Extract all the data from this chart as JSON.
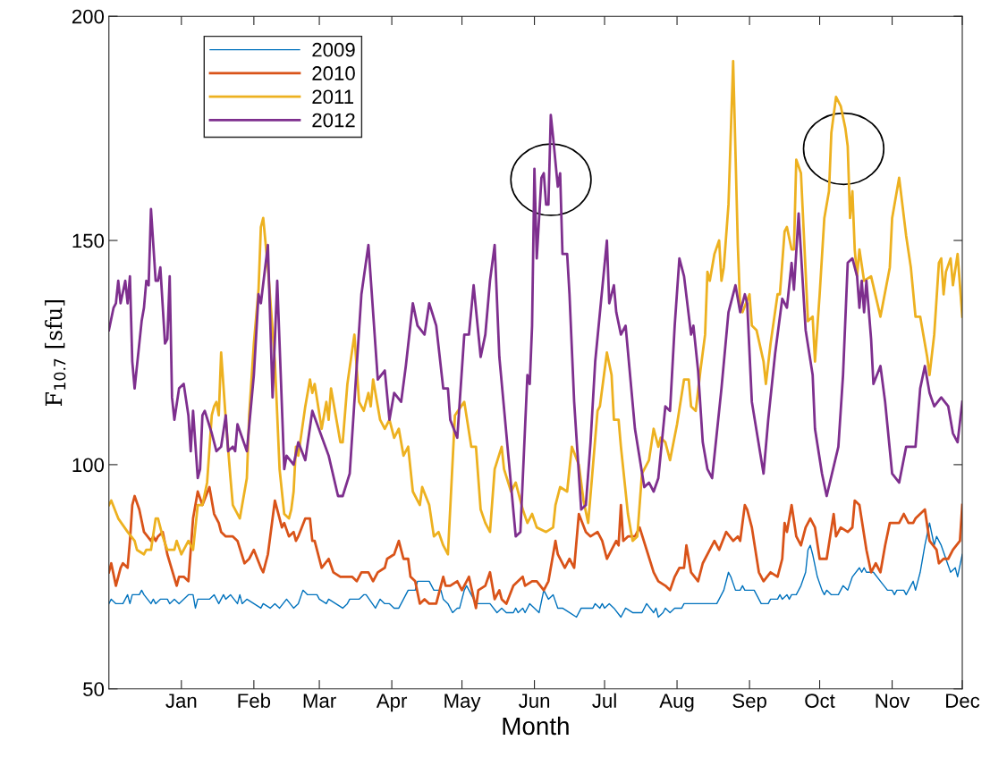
{
  "chart_data": {
    "type": "line",
    "xlabel": "Month",
    "ylabel": "F$_{10.7}$ [sfu]",
    "xlim": [
      "2010-12-01",
      "2011-12-01"
    ],
    "xticks": [
      {
        "value": "2011-01-01",
        "label": "Jan"
      },
      {
        "value": "2011-02-01",
        "label": "Feb"
      },
      {
        "value": "2011-03-01",
        "label": "Mar"
      },
      {
        "value": "2011-04-01",
        "label": "Apr"
      },
      {
        "value": "2011-05-01",
        "label": "May"
      },
      {
        "value": "2011-06-01",
        "label": "Jun"
      },
      {
        "value": "2011-07-01",
        "label": "Jul"
      },
      {
        "value": "2011-08-01",
        "label": "Aug"
      },
      {
        "value": "2011-09-01",
        "label": "Sep"
      },
      {
        "value": "2011-10-01",
        "label": "Oct"
      },
      {
        "value": "2011-11-01",
        "label": "Nov"
      },
      {
        "value": "2011-12-01",
        "label": "Dec"
      }
    ],
    "ylim": [
      50,
      200
    ],
    "yticks": [
      50,
      100,
      150,
      200
    ],
    "grid": false,
    "legend": "top left",
    "marker": "none",
    "line_style": "solid",
    "series": [
      {
        "name": "2009",
        "color": "#0072bd",
        "x": [
          "2010-12-01",
          "2010-12-02",
          "2010-12-04",
          "2010-12-07",
          "2010-12-09",
          "2010-12-10",
          "2010-12-11",
          "2010-12-14",
          "2010-12-15",
          "2010-12-16",
          "2010-12-19",
          "2010-12-20",
          "2010-12-21",
          "2010-12-23",
          "2010-12-26",
          "2010-12-27",
          "2010-12-29",
          "2010-12-31",
          "2011-01-02",
          "2011-01-04",
          "2011-01-06",
          "2011-01-07",
          "2011-01-08",
          "2011-01-13",
          "2011-01-15",
          "2011-01-17",
          "2011-01-19",
          "2011-01-20",
          "2011-01-22",
          "2011-01-25",
          "2011-01-26",
          "2011-01-27",
          "2011-01-29",
          "2011-02-01",
          "2011-02-04",
          "2011-02-05",
          "2011-02-08",
          "2011-02-10",
          "2011-02-12",
          "2011-02-15",
          "2011-02-18",
          "2011-02-20",
          "2011-02-22",
          "2011-02-24",
          "2011-02-28",
          "2011-03-01",
          "2011-03-04",
          "2011-03-05",
          "2011-03-08",
          "2011-03-11",
          "2011-03-13",
          "2011-03-14",
          "2011-03-18",
          "2011-03-20",
          "2011-03-21",
          "2011-03-25",
          "2011-03-27",
          "2011-03-29",
          "2011-03-31",
          "2011-04-02",
          "2011-04-04",
          "2011-04-08",
          "2011-04-11",
          "2011-04-12",
          "2011-04-17",
          "2011-04-19",
          "2011-04-22",
          "2011-04-23",
          "2011-04-25",
          "2011-04-27",
          "2011-04-29",
          "2011-04-30",
          "2011-05-02",
          "2011-05-03",
          "2011-05-04",
          "2011-05-07",
          "2011-05-13",
          "2011-05-16",
          "2011-05-18",
          "2011-05-20",
          "2011-05-23",
          "2011-05-24",
          "2011-05-25",
          "2011-05-27",
          "2011-05-28",
          "2011-05-30",
          "2011-06-01",
          "2011-06-03",
          "2011-06-05",
          "2011-06-07",
          "2011-06-09",
          "2011-06-11",
          "2011-06-13",
          "2011-06-16",
          "2011-06-19",
          "2011-06-21",
          "2011-06-26",
          "2011-06-27",
          "2011-06-29",
          "2011-06-30",
          "2011-07-01",
          "2011-07-03",
          "2011-07-05",
          "2011-07-08",
          "2011-07-10",
          "2011-07-13",
          "2011-07-17",
          "2011-07-19",
          "2011-07-22",
          "2011-07-23",
          "2011-07-24",
          "2011-07-26",
          "2011-07-27",
          "2011-07-29",
          "2011-07-31",
          "2011-08-03",
          "2011-08-04",
          "2011-08-18",
          "2011-08-20",
          "2011-08-21",
          "2011-08-23",
          "2011-08-24",
          "2011-08-26",
          "2011-08-28",
          "2011-08-29",
          "2011-08-30",
          "2011-09-03",
          "2011-09-06",
          "2011-09-09",
          "2011-09-10",
          "2011-09-13",
          "2011-09-14",
          "2011-09-15",
          "2011-09-17",
          "2011-09-18",
          "2011-09-19",
          "2011-09-21",
          "2011-09-23",
          "2011-09-25",
          "2011-09-26",
          "2011-09-27",
          "2011-09-28",
          "2011-09-30",
          "2011-10-02",
          "2011-10-03",
          "2011-10-04",
          "2011-10-06",
          "2011-10-09",
          "2011-10-11",
          "2011-10-13",
          "2011-10-15",
          "2011-10-18",
          "2011-10-19",
          "2011-10-20",
          "2011-10-21",
          "2011-10-24",
          "2011-10-27",
          "2011-10-30",
          "2011-11-01",
          "2011-11-02",
          "2011-11-03",
          "2011-11-06",
          "2011-11-07",
          "2011-11-10",
          "2011-11-11",
          "2011-11-13",
          "2011-11-15",
          "2011-11-17",
          "2011-11-19",
          "2011-11-20",
          "2011-11-22",
          "2011-11-24",
          "2011-11-26",
          "2011-11-28",
          "2011-11-29",
          "2011-12-01"
        ],
        "values": [
          69,
          70,
          69,
          69,
          71,
          69,
          71,
          71,
          72,
          71,
          69,
          70,
          69,
          70,
          70,
          69,
          70,
          69,
          70,
          71,
          71,
          68,
          70,
          70,
          71,
          69,
          71,
          70,
          71,
          69,
          71,
          69,
          70,
          69,
          68,
          69,
          68,
          69,
          68,
          70,
          68,
          69,
          72,
          71,
          71,
          70,
          69,
          70,
          69,
          68,
          69,
          70,
          70,
          71,
          71,
          68,
          70,
          69,
          69,
          68,
          68,
          72,
          72,
          74,
          74,
          72,
          72,
          70,
          69,
          67,
          68,
          68,
          72,
          73,
          72,
          69,
          69,
          67,
          68,
          67,
          67,
          68,
          67,
          68,
          67,
          69,
          68,
          67,
          72,
          70,
          71,
          68,
          68,
          67,
          66,
          68,
          68,
          69,
          68,
          69,
          68,
          69,
          68,
          66,
          68,
          67,
          67,
          69,
          67,
          68,
          66,
          67,
          68,
          67,
          68,
          68,
          69,
          69,
          71,
          72,
          76,
          75,
          72,
          72,
          73,
          72,
          72,
          69,
          69,
          70,
          70,
          71,
          70,
          71,
          70,
          71,
          71,
          73,
          76,
          81,
          82,
          80,
          75,
          72,
          71,
          72,
          71,
          71,
          73,
          72,
          75,
          77,
          76,
          77,
          76,
          76,
          74,
          72,
          72,
          71,
          72,
          72,
          71,
          74,
          72,
          76,
          82,
          87,
          82,
          84,
          82,
          79,
          76,
          77,
          75,
          80
        ]
      },
      {
        "name": "2010",
        "color": "#d95319",
        "x": [
          "2010-12-01",
          "2010-12-02",
          "2010-12-04",
          "2010-12-06",
          "2010-12-07",
          "2010-12-09",
          "2010-12-10",
          "2010-12-11",
          "2010-12-12",
          "2010-12-14",
          "2010-12-16",
          "2010-12-19",
          "2010-12-20",
          "2010-12-21",
          "2010-12-22",
          "2010-12-24",
          "2010-12-26",
          "2010-12-30",
          "2010-12-31",
          "2011-01-02",
          "2011-01-04",
          "2011-01-06",
          "2011-01-08",
          "2011-01-10",
          "2011-01-13",
          "2011-01-15",
          "2011-01-17",
          "2011-01-18",
          "2011-01-20",
          "2011-01-23",
          "2011-01-25",
          "2011-01-28",
          "2011-01-30",
          "2011-02-01",
          "2011-02-04",
          "2011-02-05",
          "2011-02-07",
          "2011-02-10",
          "2011-02-13",
          "2011-02-14",
          "2011-02-16",
          "2011-02-18",
          "2011-02-19",
          "2011-02-20",
          "2011-02-23",
          "2011-02-25",
          "2011-02-26",
          "2011-02-27",
          "2011-03-02",
          "2011-03-05",
          "2011-03-07",
          "2011-03-10",
          "2011-03-15",
          "2011-03-17",
          "2011-03-19",
          "2011-03-22",
          "2011-03-24",
          "2011-03-26",
          "2011-03-29",
          "2011-03-30",
          "2011-04-02",
          "2011-04-04",
          "2011-04-06",
          "2011-04-08",
          "2011-04-09",
          "2011-04-11",
          "2011-04-13",
          "2011-04-15",
          "2011-04-17",
          "2011-04-20",
          "2011-04-23",
          "2011-04-24",
          "2011-04-26",
          "2011-04-29",
          "2011-05-01",
          "2011-05-04",
          "2011-05-07",
          "2011-05-08",
          "2011-05-11",
          "2011-05-13",
          "2011-05-15",
          "2011-05-17",
          "2011-05-18",
          "2011-05-20",
          "2011-05-23",
          "2011-05-27",
          "2011-05-28",
          "2011-05-31",
          "2011-06-02",
          "2011-06-05",
          "2011-06-07",
          "2011-06-09",
          "2011-06-10",
          "2011-06-11",
          "2011-06-14",
          "2011-06-16",
          "2011-06-18",
          "2011-06-20",
          "2011-06-23",
          "2011-06-25",
          "2011-06-28",
          "2011-06-30",
          "2011-07-02",
          "2011-07-04",
          "2011-07-06",
          "2011-07-07",
          "2011-07-08",
          "2011-07-09",
          "2011-07-11",
          "2011-07-14",
          "2011-07-16",
          "2011-07-19",
          "2011-07-22",
          "2011-07-24",
          "2011-07-27",
          "2011-07-29",
          "2011-07-31",
          "2011-08-02",
          "2011-08-04",
          "2011-08-05",
          "2011-08-07",
          "2011-08-10",
          "2011-08-12",
          "2011-08-15",
          "2011-08-17",
          "2011-08-18",
          "2011-08-19",
          "2011-08-22",
          "2011-08-25",
          "2011-08-27",
          "2011-08-28",
          "2011-08-30",
          "2011-08-31",
          "2011-09-02",
          "2011-09-05",
          "2011-09-07",
          "2011-09-10",
          "2011-09-13",
          "2011-09-15",
          "2011-09-16",
          "2011-09-17",
          "2011-09-19",
          "2011-09-21",
          "2011-09-23",
          "2011-09-24",
          "2011-09-25",
          "2011-09-27",
          "2011-09-29",
          "2011-10-01",
          "2011-10-04",
          "2011-10-07",
          "2011-10-08",
          "2011-10-10",
          "2011-10-13",
          "2011-10-15",
          "2011-10-16",
          "2011-10-18",
          "2011-10-21",
          "2011-10-23",
          "2011-10-25",
          "2011-10-27",
          "2011-10-29",
          "2011-10-31",
          "2011-11-04",
          "2011-11-06",
          "2011-11-08",
          "2011-11-10",
          "2011-11-11",
          "2011-11-13",
          "2011-11-15",
          "2011-11-17",
          "2011-11-20",
          "2011-11-21",
          "2011-11-23",
          "2011-11-25",
          "2011-11-27",
          "2011-11-30",
          "2011-12-01"
        ],
        "values": [
          76,
          78,
          73,
          77,
          78,
          77,
          83,
          91,
          93,
          90,
          85,
          83,
          84,
          83,
          84,
          85,
          80,
          73,
          75,
          75,
          74,
          88,
          94,
          91,
          95,
          89,
          87,
          85,
          84,
          84,
          83,
          78,
          79,
          81,
          77,
          76,
          80,
          92,
          86,
          87,
          84,
          85,
          83,
          84,
          88,
          88,
          83,
          83,
          77,
          79,
          76,
          75,
          75,
          74,
          76,
          76,
          74,
          76,
          77,
          79,
          80,
          83,
          79,
          79,
          75,
          74,
          69,
          70,
          69,
          69,
          75,
          73,
          73,
          74,
          72,
          75,
          68,
          72,
          73,
          76,
          70,
          72,
          70,
          69,
          73,
          75,
          73,
          74,
          74,
          72,
          74,
          80,
          83,
          80,
          77,
          79,
          77,
          89,
          85,
          84,
          85,
          83,
          79,
          81,
          83,
          82,
          91,
          83,
          84,
          84,
          86,
          81,
          76,
          74,
          73,
          72,
          75,
          77,
          77,
          82,
          76,
          74,
          78,
          81,
          83,
          82,
          81,
          85,
          83,
          84,
          83,
          91,
          90,
          86,
          76,
          74,
          76,
          75,
          79,
          87,
          85,
          91,
          84,
          82,
          84,
          86,
          88,
          86,
          79,
          79,
          89,
          84,
          86,
          85,
          86,
          92,
          91,
          81,
          76,
          78,
          76,
          82,
          87,
          87,
          89,
          87,
          87,
          88,
          89,
          90,
          83,
          81,
          78,
          79,
          79,
          81,
          83,
          91
        ]
      },
      {
        "name": "2011",
        "color": "#edb120",
        "x": [
          "2010-12-01",
          "2010-12-02",
          "2010-12-05",
          "2010-12-09",
          "2010-12-12",
          "2010-12-13",
          "2010-12-16",
          "2010-12-17",
          "2010-12-19",
          "2010-12-21",
          "2010-12-22",
          "2010-12-24",
          "2010-12-26",
          "2010-12-29",
          "2010-12-30",
          "2011-01-01",
          "2011-01-04",
          "2011-01-06",
          "2011-01-08",
          "2011-01-10",
          "2011-01-12",
          "2011-01-14",
          "2011-01-15",
          "2011-01-16",
          "2011-01-17",
          "2011-01-18",
          "2011-01-20",
          "2011-01-22",
          "2011-01-23",
          "2011-01-24",
          "2011-01-26",
          "2011-01-27",
          "2011-01-29",
          "2011-01-30",
          "2011-02-01",
          "2011-02-03",
          "2011-02-04",
          "2011-02-05",
          "2011-02-07",
          "2011-02-10",
          "2011-02-12",
          "2011-02-14",
          "2011-02-16",
          "2011-02-17",
          "2011-02-18",
          "2011-02-19",
          "2011-02-20",
          "2011-02-23",
          "2011-02-25",
          "2011-02-26",
          "2011-02-27",
          "2011-03-02",
          "2011-03-04",
          "2011-03-05",
          "2011-03-06",
          "2011-03-10",
          "2011-03-11",
          "2011-03-13",
          "2011-03-16",
          "2011-03-18",
          "2011-03-20",
          "2011-03-22",
          "2011-03-23",
          "2011-03-24",
          "2011-03-27",
          "2011-03-29",
          "2011-03-31",
          "2011-04-02",
          "2011-04-04",
          "2011-04-06",
          "2011-04-08",
          "2011-04-10",
          "2011-04-13",
          "2011-04-14",
          "2011-04-17",
          "2011-04-19",
          "2011-04-21",
          "2011-04-23",
          "2011-04-25",
          "2011-04-28",
          "2011-05-02",
          "2011-05-05",
          "2011-05-07",
          "2011-05-09",
          "2011-05-11",
          "2011-05-13",
          "2011-05-15",
          "2011-05-18",
          "2011-05-19",
          "2011-05-22",
          "2011-05-24",
          "2011-05-27",
          "2011-05-29",
          "2011-05-31",
          "2011-06-02",
          "2011-06-06",
          "2011-06-09",
          "2011-06-10",
          "2011-06-12",
          "2011-06-15",
          "2011-06-17",
          "2011-06-20",
          "2011-06-22",
          "2011-06-24",
          "2011-06-28",
          "2011-06-29",
          "2011-07-02",
          "2011-07-04",
          "2011-07-05",
          "2011-07-07",
          "2011-07-08",
          "2011-07-11",
          "2011-07-13",
          "2011-07-15",
          "2011-07-17",
          "2011-07-20",
          "2011-07-22",
          "2011-07-24",
          "2011-07-25",
          "2011-07-27",
          "2011-07-29",
          "2011-08-01",
          "2011-08-04",
          "2011-08-06",
          "2011-08-07",
          "2011-08-09",
          "2011-08-11",
          "2011-08-13",
          "2011-08-14",
          "2011-08-15",
          "2011-08-17",
          "2011-08-19",
          "2011-08-20",
          "2011-08-21",
          "2011-08-23",
          "2011-08-25",
          "2011-08-27",
          "2011-08-28",
          "2011-08-29",
          "2011-09-01",
          "2011-09-02",
          "2011-09-04",
          "2011-09-07",
          "2011-09-08",
          "2011-09-10",
          "2011-09-13",
          "2011-09-14",
          "2011-09-16",
          "2011-09-17",
          "2011-09-19",
          "2011-09-20",
          "2011-09-21",
          "2011-09-23",
          "2011-09-26",
          "2011-09-28",
          "2011-09-29",
          "2011-10-01",
          "2011-10-03",
          "2011-10-05",
          "2011-10-06",
          "2011-10-08",
          "2011-10-10",
          "2011-10-12",
          "2011-10-13",
          "2011-10-14",
          "2011-10-15",
          "2011-10-16",
          "2011-10-17",
          "2011-10-18",
          "2011-10-20",
          "2011-10-23",
          "2011-10-27",
          "2011-10-31",
          "2011-11-01",
          "2011-11-04",
          "2011-11-07",
          "2011-11-09",
          "2011-11-11",
          "2011-11-13",
          "2011-11-16",
          "2011-11-17",
          "2011-11-19",
          "2011-11-21",
          "2011-11-22",
          "2011-11-23",
          "2011-11-24",
          "2011-11-26",
          "2011-11-27",
          "2011-11-29",
          "2011-12-01"
        ],
        "values": [
          91,
          92,
          88,
          85,
          83,
          81,
          80,
          81,
          81,
          88,
          88,
          84,
          81,
          81,
          83,
          80,
          83,
          81,
          91,
          91,
          96,
          111,
          113,
          114,
          111,
          125,
          110,
          97,
          91,
          90,
          88,
          91,
          97,
          111,
          127,
          139,
          153,
          155,
          144,
          123,
          99,
          89,
          88,
          90,
          94,
          104,
          102,
          113,
          119,
          116,
          118,
          108,
          114,
          110,
          117,
          105,
          105,
          118,
          129,
          114,
          112,
          116,
          113,
          119,
          110,
          108,
          110,
          106,
          108,
          102,
          104,
          94,
          91,
          95,
          91,
          84,
          85,
          82,
          80,
          111,
          114,
          104,
          104,
          90,
          87,
          85,
          99,
          104,
          99,
          94,
          96,
          90,
          87,
          89,
          86,
          85,
          86,
          91,
          95,
          94,
          104,
          100,
          92,
          87,
          112,
          113,
          125,
          120,
          110,
          110,
          104,
          89,
          83,
          84,
          98,
          101,
          108,
          104,
          106,
          105,
          101,
          109,
          119,
          119,
          113,
          112,
          121,
          129,
          143,
          141,
          147,
          150,
          141,
          144,
          158,
          190,
          149,
          135,
          134,
          138,
          131,
          130,
          123,
          118,
          127,
          138,
          138,
          152,
          153,
          148,
          148,
          168,
          165,
          132,
          133,
          123,
          138,
          155,
          161,
          174,
          182,
          180,
          175,
          171,
          155,
          161,
          148,
          142,
          148,
          141,
          142,
          133,
          144,
          155,
          164,
          151,
          144,
          133,
          133,
          124,
          120,
          129,
          145,
          146,
          138,
          143,
          146,
          140,
          147,
          133
        ]
      },
      {
        "name": "2012",
        "color": "#7e2f8e",
        "x": [
          "2010-12-01",
          "2010-12-03",
          "2010-12-04",
          "2010-12-05",
          "2010-12-06",
          "2010-12-08",
          "2010-12-09",
          "2010-12-10",
          "2010-12-11",
          "2010-12-12",
          "2010-12-15",
          "2010-12-16",
          "2010-12-17",
          "2010-12-18",
          "2010-12-19",
          "2010-12-21",
          "2010-12-22",
          "2010-12-23",
          "2010-12-25",
          "2010-12-26",
          "2010-12-27",
          "2010-12-28",
          "2010-12-29",
          "2010-12-31",
          "2011-01-02",
          "2011-01-04",
          "2011-01-05",
          "2011-01-06",
          "2011-01-08",
          "2011-01-09",
          "2011-01-10",
          "2011-01-11",
          "2011-01-14",
          "2011-01-16",
          "2011-01-18",
          "2011-01-20",
          "2011-01-21",
          "2011-01-23",
          "2011-01-24",
          "2011-01-25",
          "2011-01-27",
          "2011-01-29",
          "2011-02-01",
          "2011-02-03",
          "2011-02-04",
          "2011-02-07",
          "2011-02-09",
          "2011-02-11",
          "2011-02-14",
          "2011-02-15",
          "2011-02-18",
          "2011-02-20",
          "2011-02-23",
          "2011-02-26",
          "2011-03-05",
          "2011-03-09",
          "2011-03-11",
          "2011-03-14",
          "2011-03-19",
          "2011-03-22",
          "2011-03-26",
          "2011-03-29",
          "2011-03-31",
          "2011-04-02",
          "2011-04-05",
          "2011-04-07",
          "2011-04-10",
          "2011-04-12",
          "2011-04-15",
          "2011-04-17",
          "2011-04-20",
          "2011-04-23",
          "2011-04-25",
          "2011-04-26",
          "2011-04-29",
          "2011-05-02",
          "2011-05-04",
          "2011-05-06",
          "2011-05-09",
          "2011-05-11",
          "2011-05-13",
          "2011-05-15",
          "2011-05-17",
          "2011-05-24",
          "2011-05-26",
          "2011-05-29",
          "2011-05-30",
          "2011-05-31",
          "2011-06-01",
          "2011-06-02",
          "2011-06-04",
          "2011-06-05",
          "2011-06-06",
          "2011-06-07",
          "2011-06-08",
          "2011-06-09",
          "2011-06-11",
          "2011-06-12",
          "2011-06-13",
          "2011-06-15",
          "2011-06-16",
          "2011-06-18",
          "2011-06-21",
          "2011-06-23",
          "2011-06-25",
          "2011-06-27",
          "2011-07-02",
          "2011-07-03",
          "2011-07-05",
          "2011-07-06",
          "2011-07-08",
          "2011-07-10",
          "2011-07-14",
          "2011-07-18",
          "2011-07-20",
          "2011-07-22",
          "2011-07-24",
          "2011-07-27",
          "2011-07-29",
          "2011-07-31",
          "2011-08-02",
          "2011-08-04",
          "2011-08-07",
          "2011-08-08",
          "2011-08-10",
          "2011-08-12",
          "2011-08-14",
          "2011-08-16",
          "2011-08-20",
          "2011-08-23",
          "2011-08-26",
          "2011-08-28",
          "2011-08-30",
          "2011-08-31",
          "2011-09-02",
          "2011-09-07",
          "2011-09-09",
          "2011-09-12",
          "2011-09-15",
          "2011-09-17",
          "2011-09-19",
          "2011-09-20",
          "2011-09-22",
          "2011-09-25",
          "2011-09-28",
          "2011-09-29",
          "2011-10-02",
          "2011-10-04",
          "2011-10-09",
          "2011-10-11",
          "2011-10-13",
          "2011-10-15",
          "2011-10-17",
          "2011-10-18",
          "2011-10-19",
          "2011-10-20",
          "2011-10-21",
          "2011-10-23",
          "2011-10-24",
          "2011-10-27",
          "2011-10-29",
          "2011-11-01",
          "2011-11-04",
          "2011-11-07",
          "2011-11-11",
          "2011-11-13",
          "2011-11-15",
          "2011-11-17",
          "2011-11-19",
          "2011-11-22",
          "2011-11-25",
          "2011-11-27",
          "2011-11-29",
          "2011-12-01"
        ],
        "values": [
          130,
          135,
          136,
          141,
          136,
          141,
          136,
          142,
          123,
          117,
          132,
          135,
          141,
          140,
          157,
          141,
          141,
          144,
          127,
          128,
          142,
          115,
          110,
          117,
          118,
          111,
          103,
          112,
          97,
          99,
          111,
          112,
          107,
          103,
          104,
          111,
          103,
          104,
          103,
          109,
          106,
          103,
          120,
          138,
          136,
          149,
          115,
          141,
          99,
          102,
          100,
          105,
          101,
          112,
          102,
          93,
          93,
          98,
          138,
          149,
          119,
          121,
          110,
          116,
          114,
          122,
          136,
          131,
          129,
          136,
          131,
          117,
          117,
          110,
          106,
          129,
          129,
          140,
          124,
          129,
          141,
          149,
          124,
          84,
          85,
          120,
          118,
          131,
          166,
          146,
          164,
          165,
          158,
          158,
          178,
          173,
          162,
          165,
          147,
          147,
          138,
          114,
          90,
          91,
          105,
          123,
          150,
          136,
          140,
          134,
          129,
          131,
          108,
          95,
          96,
          94,
          97,
          113,
          112,
          131,
          146,
          142,
          129,
          131,
          121,
          105,
          99,
          97,
          117,
          134,
          140,
          134,
          138,
          136,
          114,
          98,
          110,
          125,
          137,
          135,
          145,
          139,
          156,
          130,
          120,
          108,
          98,
          93,
          104,
          120,
          145,
          146,
          142,
          135,
          141,
          134,
          141,
          128,
          118,
          122,
          114,
          98,
          96,
          104,
          104,
          117,
          122,
          116,
          113,
          115,
          113,
          107,
          105,
          114
        ]
      }
    ]
  }
}
